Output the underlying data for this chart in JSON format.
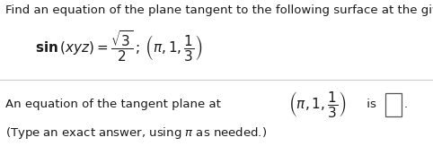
{
  "bg_color": "#ffffff",
  "text_color": "#1a1a1a",
  "gray_color": "#555555",
  "title": "Find an equation of the plane tangent to the following surface at the given point.",
  "title_fontsize": 9.5,
  "math_line": "$\\mathbf{sin}\\,(xyz) = \\dfrac{\\sqrt{3}}{2}\\,;\\,\\left(\\pi,1,\\dfrac{1}{3}\\right)$",
  "math_fontsize": 11,
  "line2a": "An equation of the tangent plane at ",
  "line2_math": "$\\left(\\pi,1,\\dfrac{1}{3}\\right)$",
  "line2b": " is ",
  "line2_fontsize": 9.5,
  "line3": "(Type an exact answer, using $\\pi$ as needed.)",
  "line3_fontsize": 9.5,
  "divider_color": "#cccccc",
  "box_edgecolor": "#555555"
}
